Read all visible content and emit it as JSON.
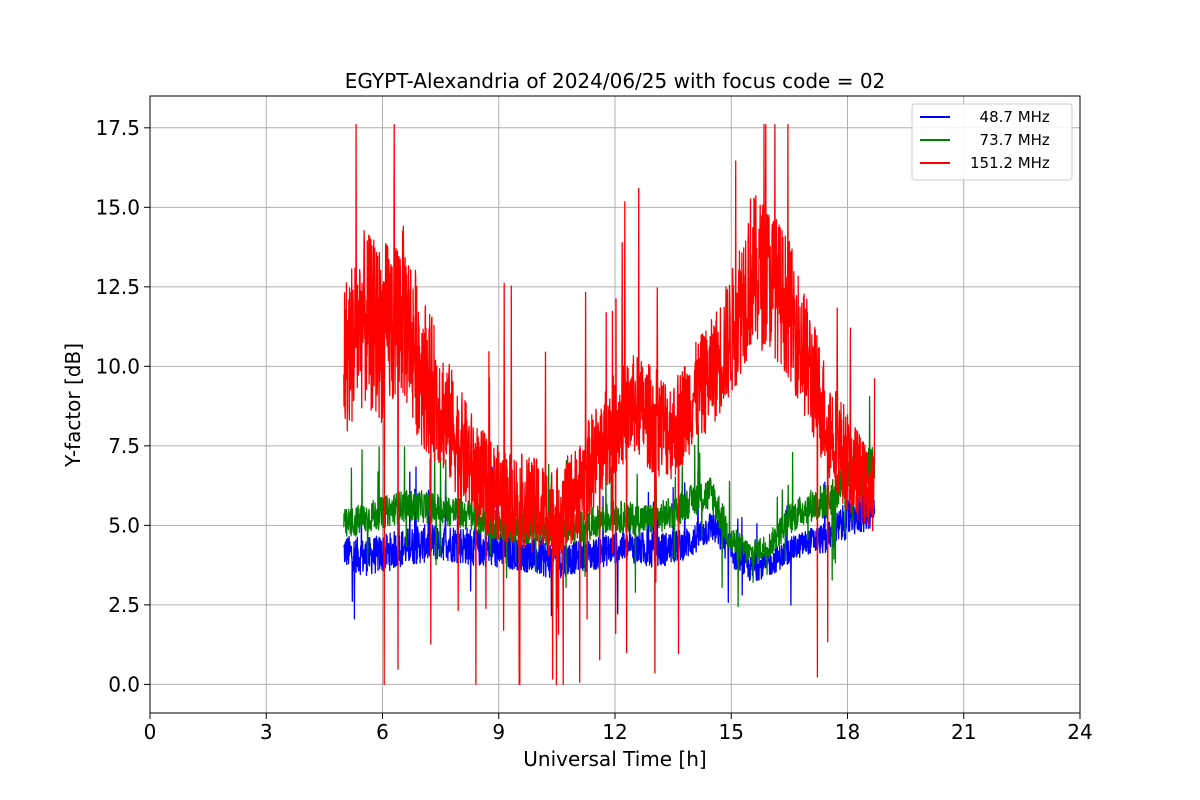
{
  "chart_data": {
    "type": "line",
    "title": "EGYPT-Alexandria of 2024/06/25 with focus code = 02",
    "xlabel": "Universal Time [h]",
    "ylabel": "Y-factor [dB]",
    "xlim": [
      0,
      24
    ],
    "ylim": [
      -0.9,
      18.5
    ],
    "xticks": [
      0,
      3,
      6,
      9,
      12,
      15,
      18,
      21,
      24
    ],
    "xtick_labels": [
      "0",
      "3",
      "6",
      "9",
      "12",
      "15",
      "18",
      "21",
      "24"
    ],
    "yticks": [
      0.0,
      2.5,
      5.0,
      7.5,
      10.0,
      12.5,
      15.0,
      17.5
    ],
    "ytick_labels": [
      "0.0",
      "2.5",
      "5.0",
      "7.5",
      "10.0",
      "12.5",
      "15.0",
      "17.5"
    ],
    "grid": true,
    "legend_position": "top-right",
    "series": [
      {
        "name": "  48.7 MHz",
        "color": "#0000ff",
        "x": [
          5.0,
          5.5,
          6.0,
          6.5,
          7.0,
          7.5,
          8.0,
          8.5,
          9.0,
          9.5,
          10.0,
          10.5,
          11.0,
          11.5,
          12.0,
          12.5,
          13.0,
          13.5,
          14.0,
          14.5,
          15.0,
          15.5,
          16.0,
          16.5,
          17.0,
          17.5,
          18.0,
          18.5,
          18.7
        ],
        "y": [
          4.2,
          4.0,
          4.1,
          4.3,
          4.4,
          4.5,
          4.4,
          4.3,
          4.2,
          4.1,
          4.0,
          3.9,
          4.0,
          4.1,
          4.3,
          4.3,
          4.2,
          4.3,
          4.5,
          5.0,
          4.2,
          3.6,
          3.8,
          4.2,
          4.5,
          4.6,
          5.2,
          5.5,
          5.6
        ],
        "spread": [
          0.5,
          0.6,
          0.6,
          0.6,
          0.6,
          0.6,
          0.6,
          0.6,
          0.6,
          0.5,
          0.6,
          0.6,
          0.5,
          0.5,
          0.5,
          0.5,
          0.6,
          0.5,
          0.5,
          0.5,
          0.5,
          0.4,
          0.4,
          0.4,
          0.4,
          0.5,
          0.6,
          0.7,
          0.6
        ]
      },
      {
        "name": "  73.7 MHz",
        "color": "#008000",
        "x": [
          5.0,
          5.5,
          6.0,
          6.5,
          7.0,
          7.5,
          8.0,
          8.5,
          9.0,
          9.5,
          10.0,
          10.5,
          11.0,
          11.5,
          12.0,
          12.5,
          13.0,
          13.5,
          14.0,
          14.5,
          15.0,
          15.5,
          16.0,
          16.5,
          17.0,
          17.5,
          18.0,
          18.5,
          18.7
        ],
        "y": [
          5.0,
          5.2,
          5.4,
          5.6,
          5.6,
          5.5,
          5.4,
          5.2,
          5.0,
          4.9,
          4.9,
          4.8,
          4.9,
          5.1,
          5.3,
          5.2,
          5.2,
          5.4,
          5.8,
          6.0,
          4.5,
          4.1,
          4.4,
          5.2,
          5.6,
          5.8,
          6.4,
          6.8,
          6.9
        ],
        "spread": [
          0.5,
          0.5,
          0.5,
          0.5,
          0.5,
          0.5,
          0.5,
          0.5,
          0.5,
          0.5,
          0.5,
          0.5,
          0.5,
          0.5,
          0.5,
          0.5,
          0.5,
          0.5,
          0.5,
          0.6,
          0.5,
          0.4,
          0.4,
          0.5,
          0.5,
          0.6,
          0.6,
          0.8,
          0.7
        ]
      },
      {
        "name": "151.2 MHz",
        "color": "#ff0000",
        "x": [
          5.0,
          5.5,
          6.0,
          6.5,
          7.0,
          7.5,
          8.0,
          8.5,
          9.0,
          9.5,
          10.0,
          10.5,
          11.0,
          11.5,
          12.0,
          12.5,
          13.0,
          13.5,
          14.0,
          14.5,
          15.0,
          15.5,
          16.0,
          16.5,
          17.0,
          17.5,
          18.0,
          18.5,
          18.7
        ],
        "y": [
          10.2,
          11.5,
          11.0,
          11.8,
          10.0,
          8.8,
          7.5,
          6.5,
          6.0,
          5.8,
          5.6,
          5.4,
          6.0,
          7.2,
          8.2,
          8.8,
          8.3,
          8.0,
          9.0,
          9.8,
          11.0,
          13.0,
          12.8,
          11.8,
          10.0,
          8.2,
          7.0,
          6.2,
          6.0
        ],
        "spread": [
          2.5,
          2.8,
          2.8,
          2.8,
          2.5,
          2.0,
          1.8,
          1.6,
          1.5,
          1.5,
          1.5,
          1.4,
          1.5,
          1.6,
          1.6,
          1.6,
          1.7,
          1.6,
          1.6,
          1.7,
          2.0,
          2.5,
          2.3,
          2.2,
          2.0,
          1.7,
          1.6,
          1.3,
          1.2
        ]
      }
    ]
  }
}
